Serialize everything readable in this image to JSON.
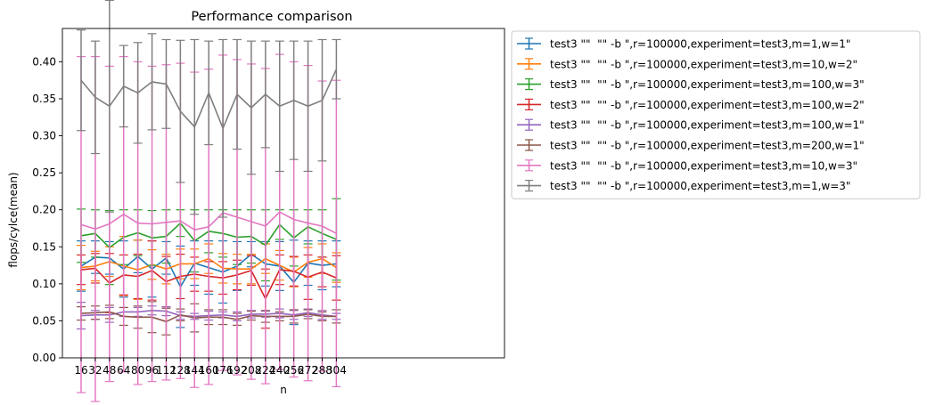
{
  "chart_data": {
    "type": "line",
    "title": "Performance comparison",
    "xlabel": "n",
    "ylabel": "flops/cylce(mean)",
    "categories": [
      "16",
      "32",
      "48",
      "64",
      "80",
      "96",
      "112",
      "128",
      "144",
      "160",
      "176",
      "192",
      "208",
      "224",
      "240",
      "256",
      "272",
      "288",
      "304"
    ],
    "yticks": [
      "0.00",
      "0.05",
      "0.10",
      "0.15",
      "0.20",
      "0.25",
      "0.30",
      "0.35",
      "0.40"
    ],
    "ylim": [
      0,
      0.445
    ],
    "grid": false,
    "legend_position": "outside-right",
    "series": [
      {
        "name": "test3 \"\"  \"\" -b \",r=100000,experiment=test3,m=1,w=1\"",
        "color": "#1f77b4",
        "values": [
          0.124,
          0.136,
          0.135,
          0.12,
          0.137,
          0.12,
          0.135,
          0.096,
          0.128,
          0.122,
          0.116,
          0.124,
          0.14,
          0.127,
          0.124,
          0.102,
          0.128,
          0.125,
          0.127
        ],
        "err": [
          0.034,
          0.022,
          0.022,
          0.038,
          0.022,
          0.038,
          0.022,
          0.055,
          0.03,
          0.036,
          0.042,
          0.033,
          0.017,
          0.03,
          0.033,
          0.057,
          0.03,
          0.033,
          0.031
        ]
      },
      {
        "name": "test3 \"\"  \"\" -b \",r=100000,experiment=test3,m=10,w=2\"",
        "color": "#ff7f0e",
        "values": [
          0.122,
          0.124,
          0.13,
          0.124,
          0.119,
          0.126,
          0.12,
          0.127,
          0.127,
          0.134,
          0.121,
          0.12,
          0.12,
          0.134,
          0.125,
          0.116,
          0.129,
          0.134,
          0.122
        ],
        "err": [
          0.03,
          0.02,
          0.02,
          0.04,
          0.04,
          0.02,
          0.02,
          0.02,
          0.02,
          0.02,
          0.02,
          0.02,
          0.02,
          0.02,
          0.02,
          0.02,
          0.02,
          0.02,
          0.02
        ]
      },
      {
        "name": "test3 \"\"  \"\" -b \",r=100000,experiment=test3,m=100,w=3\"",
        "color": "#2ca02c",
        "values": [
          0.165,
          0.168,
          0.149,
          0.163,
          0.169,
          0.162,
          0.164,
          0.182,
          0.158,
          0.171,
          0.168,
          0.163,
          0.164,
          0.152,
          0.18,
          0.162,
          0.177,
          0.168,
          0.16
        ],
        "err": [
          0.036,
          0.032,
          0.05,
          0.037,
          0.031,
          0.037,
          0.036,
          0.018,
          0.042,
          0.029,
          0.032,
          0.037,
          0.036,
          0.048,
          0.02,
          0.038,
          0.023,
          0.032,
          0.055
        ]
      },
      {
        "name": "test3 \"\"  \"\" -b \",r=100000,experiment=test3,m=100,w=2\"",
        "color": "#d62728",
        "values": [
          0.119,
          0.121,
          0.101,
          0.112,
          0.11,
          0.118,
          0.103,
          0.11,
          0.113,
          0.11,
          0.108,
          0.112,
          0.118,
          0.08,
          0.119,
          0.117,
          0.109,
          0.116,
          0.108
        ],
        "err": [
          0.02,
          0.02,
          0.04,
          0.027,
          0.03,
          0.04,
          0.034,
          0.03,
          0.023,
          0.02,
          0.022,
          0.02,
          0.02,
          0.04,
          0.02,
          0.02,
          0.03,
          0.02,
          0.03
        ]
      },
      {
        "name": "test3 \"\"  \"\" -b \",r=100000,experiment=test3,m=100,w=1\"",
        "color": "#9467bd",
        "values": [
          0.057,
          0.058,
          0.058,
          0.062,
          0.062,
          0.064,
          0.063,
          0.057,
          0.056,
          0.057,
          0.058,
          0.056,
          0.059,
          0.059,
          0.06,
          0.058,
          0.061,
          0.058,
          0.056
        ],
        "err": [
          0.018,
          0.006,
          0.01,
          0.006,
          0.006,
          0.006,
          0.006,
          0.005,
          0.004,
          0.006,
          0.004,
          0.006,
          0.005,
          0.004,
          0.006,
          0.006,
          0.005,
          0.006,
          0.004
        ]
      },
      {
        "name": "test3 \"\"  \"\" -b \",r=100000,experiment=test3,m=200,w=1\"",
        "color": "#8c564b",
        "values": [
          0.06,
          0.061,
          0.062,
          0.056,
          0.055,
          0.055,
          0.049,
          0.058,
          0.054,
          0.055,
          0.055,
          0.052,
          0.057,
          0.056,
          0.056,
          0.056,
          0.059,
          0.056,
          0.056
        ],
        "err": [
          0.009,
          0.009,
          0.009,
          0.012,
          0.015,
          0.021,
          0.018,
          0.008,
          0.019,
          0.01,
          0.01,
          0.008,
          0.006,
          0.008,
          0.006,
          0.009,
          0.006,
          0.006,
          0.009
        ]
      },
      {
        "name": "test3 \"\"  \"\" -b \",r=100000,experiment=test3,m=10,w=3\"",
        "color": "#e377c2",
        "values": [
          0.18,
          0.174,
          0.181,
          0.194,
          0.182,
          0.181,
          0.183,
          0.185,
          0.173,
          0.177,
          0.196,
          0.19,
          0.184,
          0.178,
          0.197,
          0.187,
          0.182,
          0.178,
          0.168
        ],
        "err": [
          0.227,
          0.233,
          0.213,
          0.213,
          0.218,
          0.213,
          0.213,
          0.213,
          0.213,
          0.213,
          0.213,
          0.213,
          0.213,
          0.213,
          0.213,
          0.213,
          0.213,
          0.196,
          0.207
        ]
      },
      {
        "name": "test3 \"\"  \"\" -b \",r=100000,experiment=test3,m=1,w=3\"",
        "color": "#7f7f7f",
        "values": [
          0.375,
          0.352,
          0.34,
          0.367,
          0.358,
          0.373,
          0.37,
          0.333,
          0.312,
          0.358,
          0.31,
          0.356,
          0.338,
          0.356,
          0.34,
          0.348,
          0.34,
          0.348,
          0.39
        ],
        "err": [
          0.068,
          0.076,
          0.143,
          0.055,
          0.068,
          0.065,
          0.06,
          0.096,
          0.118,
          0.07,
          0.12,
          0.074,
          0.09,
          0.072,
          0.088,
          0.08,
          0.088,
          0.082,
          0.04
        ]
      }
    ]
  }
}
